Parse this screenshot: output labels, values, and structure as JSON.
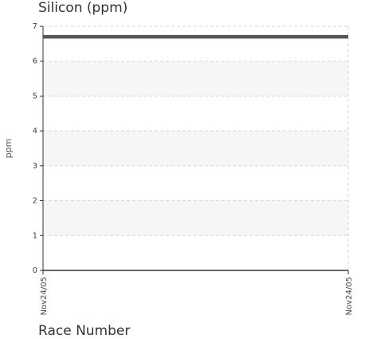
{
  "chart_data": {
    "type": "line",
    "title": "Silicon (ppm)",
    "xlabel": "Race Number",
    "ylabel": "ppm",
    "x": [
      "Nov24/05",
      "Nov24/05"
    ],
    "series": [
      {
        "values": [
          6.7,
          6.7
        ],
        "color": "#555555"
      }
    ],
    "ylim": [
      0,
      7
    ],
    "yticks": [
      "0",
      "1",
      "2",
      "3",
      "4",
      "5",
      "6",
      "7"
    ],
    "grid": true,
    "band_color": "#f6f6f6"
  }
}
